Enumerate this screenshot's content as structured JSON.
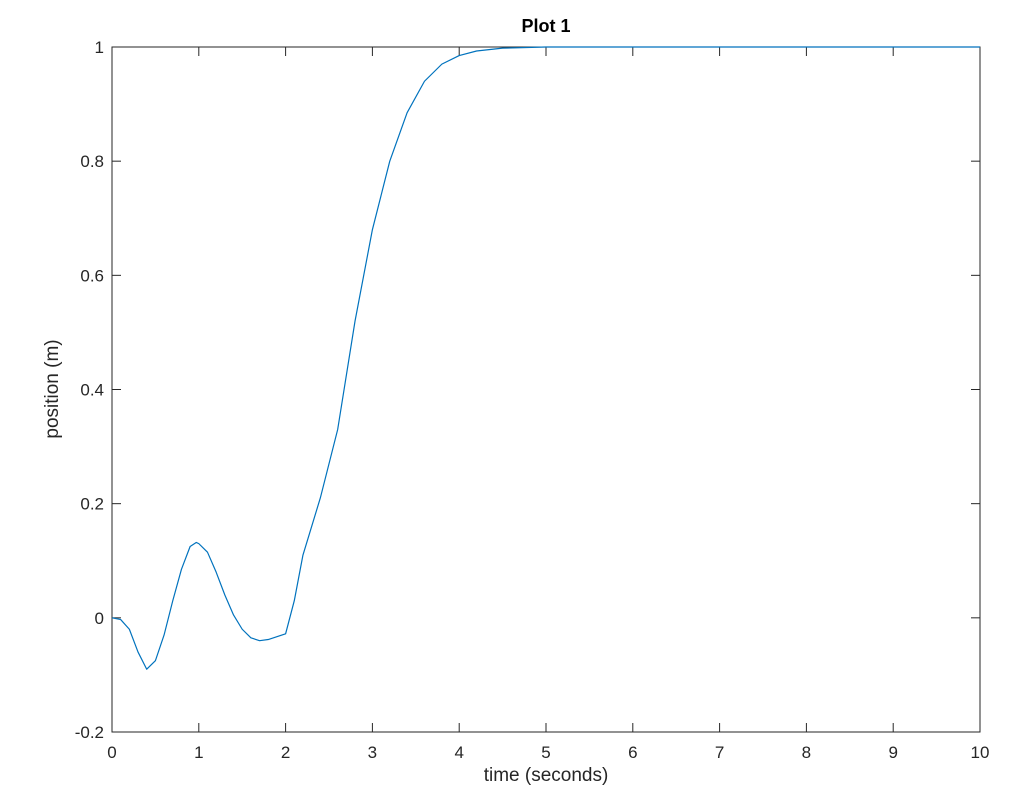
{
  "chart_data": {
    "type": "line",
    "title": "Plot 1",
    "x_label": "time (seconds)",
    "y_label": "position (m)",
    "x": [
      0,
      0.1,
      0.2,
      0.3,
      0.4,
      0.5,
      0.6,
      0.7,
      0.8,
      0.9,
      0.97,
      1.0,
      1.1,
      1.2,
      1.3,
      1.4,
      1.5,
      1.6,
      1.7,
      1.8,
      1.9,
      2.0,
      2.1,
      2.2,
      2.4,
      2.6,
      2.8,
      3.0,
      3.2,
      3.4,
      3.6,
      3.8,
      4.0,
      4.2,
      4.5,
      5,
      6,
      8,
      10
    ],
    "values": [
      0,
      -0.003,
      -0.02,
      -0.06,
      -0.09,
      -0.075,
      -0.03,
      0.03,
      0.085,
      0.125,
      0.132,
      0.13,
      0.115,
      0.08,
      0.04,
      0.005,
      -0.02,
      -0.035,
      -0.04,
      -0.038,
      -0.033,
      -0.028,
      0.03,
      0.11,
      0.21,
      0.33,
      0.52,
      0.68,
      0.8,
      0.885,
      0.94,
      0.97,
      0.985,
      0.993,
      0.998,
      1,
      1,
      1,
      1
    ],
    "color": "#0072bd",
    "xlim": [
      0,
      10
    ],
    "xticks": [
      0,
      1,
      2,
      3,
      4,
      5,
      6,
      7,
      8,
      9,
      10
    ],
    "ylim": [
      -0.2,
      1
    ],
    "yticks": [
      -0.2,
      0,
      0.2,
      0.4,
      0.6,
      0.8,
      1
    ]
  }
}
